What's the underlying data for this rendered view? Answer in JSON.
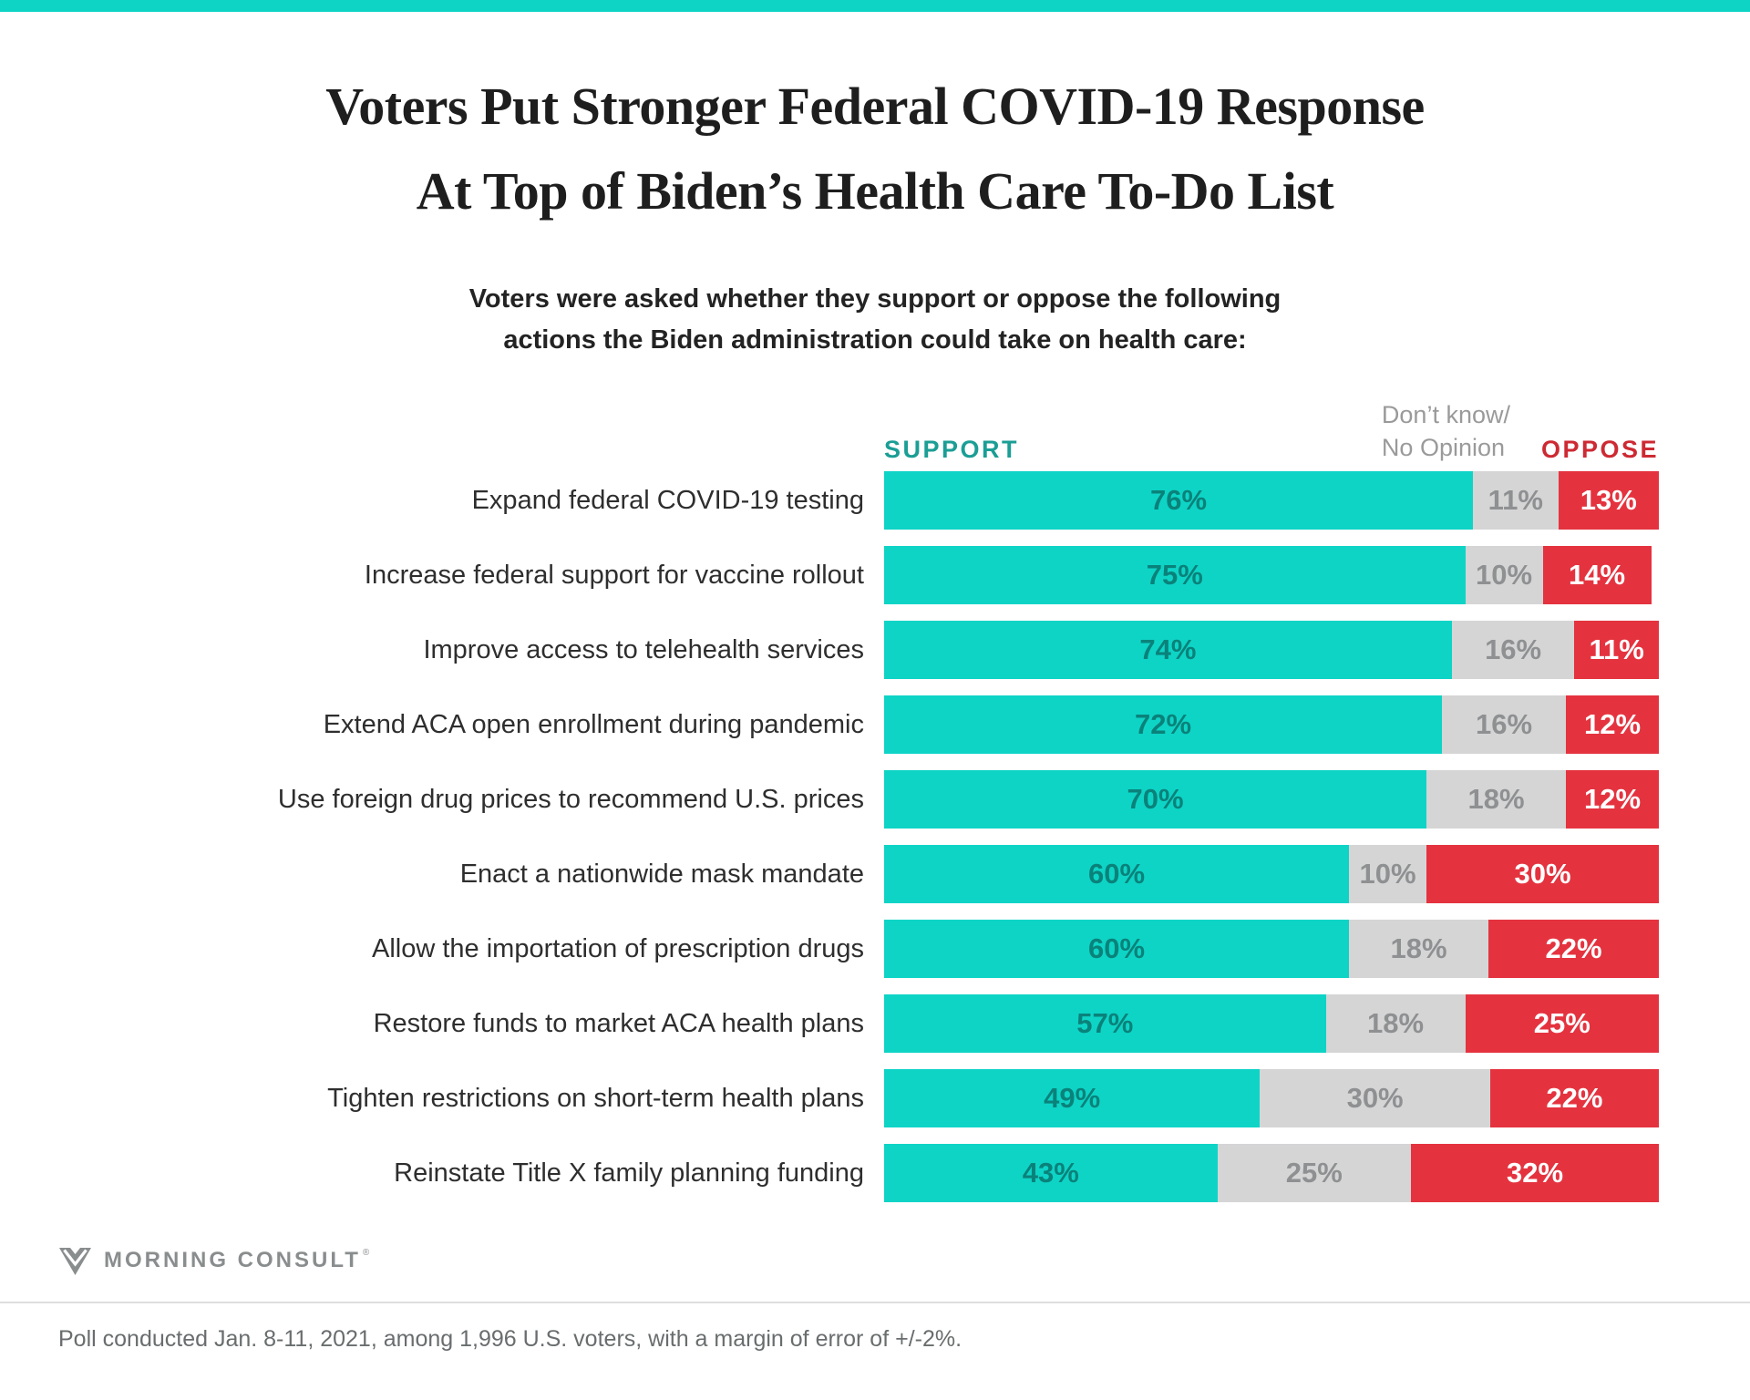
{
  "colors": {
    "teal": "#0ED4C6",
    "teal_header_text": "#1B9E95",
    "teal_number_text": "#0A827A",
    "gray": "#D5D5D6",
    "gray_number_text": "#8E9091",
    "red": "#E4333F",
    "red_header_text": "#CD2A33"
  },
  "header": {
    "title_line1": "Voters Put Stronger Federal COVID-19 Response",
    "title_line2": "At Top of Biden’s Health Care To-Do List",
    "subtitle_line1": "Voters were asked whether they support or oppose the following",
    "subtitle_line2": "actions the Biden administration could take on health care:"
  },
  "legend": {
    "support": "SUPPORT",
    "dont_know_line1": "Don’t know/",
    "dont_know_line2": "No Opinion",
    "oppose": "OPPOSE"
  },
  "chart_data": {
    "type": "bar",
    "orientation": "horizontal",
    "stacked": true,
    "unit": "%",
    "xlim": [
      0,
      100
    ],
    "categories": [
      "Expand federal COVID-19 testing",
      "Increase federal support for vaccine rollout",
      "Improve access to telehealth services",
      "Extend ACA open enrollment during pandemic",
      "Use foreign drug prices to recommend U.S. prices",
      "Enact a nationwide mask mandate",
      "Allow the importation of prescription drugs",
      "Restore funds to market ACA health plans",
      "Tighten restrictions on short-term health plans",
      "Reinstate Title X family planning funding"
    ],
    "series": [
      {
        "name": "Support",
        "color": "#0ED4C6",
        "values": [
          76,
          75,
          74,
          72,
          70,
          60,
          60,
          57,
          49,
          43
        ]
      },
      {
        "name": "Don't know/No Opinion",
        "color": "#D5D5D6",
        "values": [
          11,
          10,
          16,
          16,
          18,
          10,
          18,
          18,
          30,
          25
        ]
      },
      {
        "name": "Oppose",
        "color": "#E4333F",
        "values": [
          13,
          14,
          11,
          12,
          12,
          30,
          22,
          25,
          22,
          32
        ]
      }
    ],
    "legend_position": "top",
    "grid": false
  },
  "footer": {
    "brand": "MORNING CONSULT",
    "trademark": "®",
    "footnote": "Poll conducted Jan. 8-11, 2021, among 1,996 U.S. voters, with a margin of error of +/-2%."
  }
}
